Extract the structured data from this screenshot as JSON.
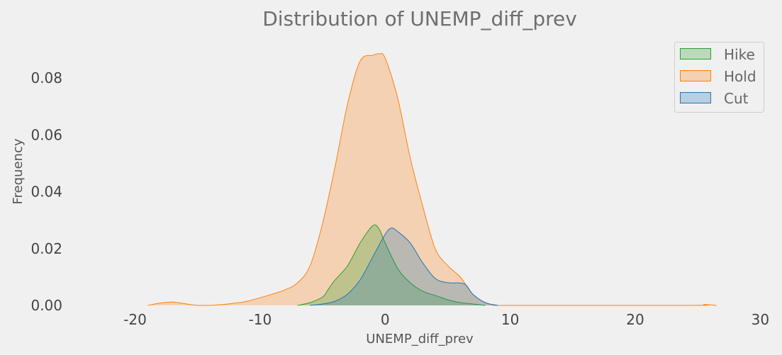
{
  "chart_data": {
    "type": "area",
    "title": "Distribution of UNEMP_diff_prev",
    "xlabel": "UNEMP_diff_prev",
    "ylabel": "Frequency",
    "xlim": [
      -24,
      31
    ],
    "ylim": [
      0,
      0.093
    ],
    "xticks": [
      "-20",
      "-10",
      "0",
      "10",
      "20",
      "30"
    ],
    "xtick_values": [
      -20,
      -10,
      0,
      10,
      20,
      30
    ],
    "yticks": [
      "0.00",
      "0.02",
      "0.04",
      "0.06",
      "0.08"
    ],
    "ytick_values": [
      0,
      0.02,
      0.04,
      0.06,
      0.08
    ],
    "grid": false,
    "legend_position": "top-right",
    "series": [
      {
        "name": "Hike",
        "color": "#2ca02c",
        "fill": "#bfdebf",
        "x": [
          -7,
          -6,
          -5,
          -4.5,
          -4,
          -3,
          -2,
          -1,
          -0.5,
          0,
          1,
          2,
          3,
          4,
          5,
          6,
          7,
          8
        ],
        "y": [
          0,
          0.001,
          0.003,
          0.006,
          0.009,
          0.014,
          0.022,
          0.028,
          0.027,
          0.022,
          0.013,
          0.008,
          0.005,
          0.0035,
          0.002,
          0.001,
          0.0005,
          0
        ]
      },
      {
        "name": "Hold",
        "color": "#ff7f0e",
        "fill": "#f4d3b8",
        "x": [
          -19,
          -18,
          -17,
          -16,
          -15,
          -14,
          -13,
          -12,
          -11,
          -10,
          -9,
          -8,
          -7,
          -6,
          -5,
          -4,
          -3,
          -2,
          -1,
          -0.5,
          0,
          1,
          2,
          3,
          4,
          5,
          6,
          7,
          8,
          9,
          10,
          24.5,
          25.5,
          26.5
        ],
        "y": [
          0,
          0.0008,
          0.0012,
          0.0006,
          0,
          0,
          0.0003,
          0.0008,
          0.0015,
          0.0027,
          0.004,
          0.0055,
          0.008,
          0.014,
          0.029,
          0.049,
          0.071,
          0.086,
          0.088,
          0.0885,
          0.087,
          0.073,
          0.052,
          0.035,
          0.02,
          0.014,
          0.01,
          0.004,
          0.001,
          0,
          0,
          0,
          0.0003,
          0
        ]
      },
      {
        "name": "Cut",
        "color": "#1f77b4",
        "fill": "#b5c7d8",
        "x": [
          -6,
          -5,
          -4,
          -3,
          -2,
          -1,
          0,
          0.5,
          1,
          2,
          3,
          4,
          5,
          6,
          6.5,
          7,
          8,
          9
        ],
        "y": [
          0,
          0.0005,
          0.0015,
          0.004,
          0.009,
          0.017,
          0.025,
          0.0272,
          0.026,
          0.022,
          0.015,
          0.0095,
          0.008,
          0.0079,
          0.007,
          0.004,
          0.001,
          0
        ]
      }
    ]
  }
}
